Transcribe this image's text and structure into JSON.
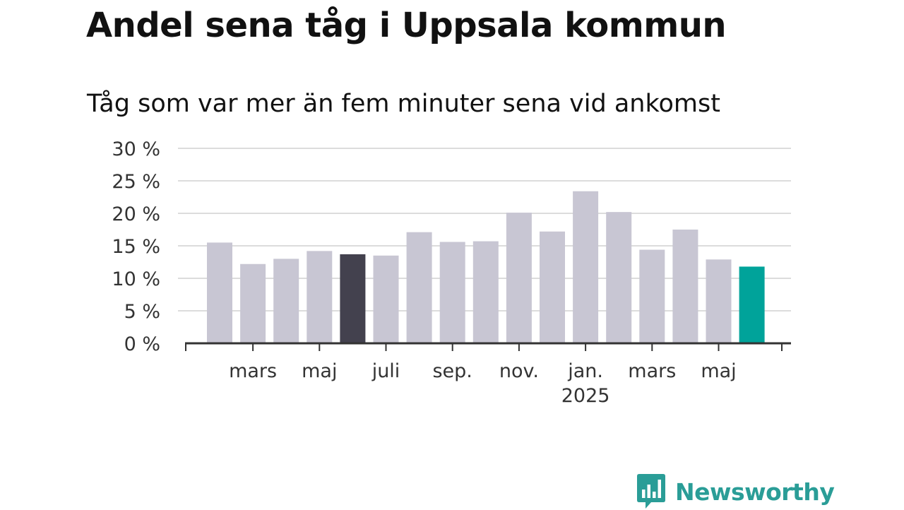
{
  "title": "Andel sena tåg i Uppsala kommun",
  "subtitle": "Tåg som var mer än fem minuter sena vid ankomst",
  "logo": {
    "name": "Newsworthy",
    "icon": "bar-chart-speech-bubble-icon",
    "color": "#2a9d97"
  },
  "colors": {
    "bar_default": "#c8c6d3",
    "bar_highlight_dark": "#43414e",
    "bar_highlight_latest": "#00a39a",
    "grid": "#dcdcdc",
    "axis": "#333333"
  },
  "chart_data": {
    "type": "bar",
    "title": "Tåg som var mer än fem minuter sena vid ankomst",
    "xlabel": "",
    "ylabel": "",
    "ylim": [
      0,
      30
    ],
    "yticks": [
      0,
      5,
      10,
      15,
      20,
      25,
      30
    ],
    "ytick_labels": [
      "0 %",
      "5 %",
      "10 %",
      "15 %",
      "20 %",
      "25 %",
      "30 %"
    ],
    "grid": true,
    "categories": [
      "2024-02",
      "2024-03",
      "2024-04",
      "2024-05",
      "2024-06",
      "2024-07",
      "2024-08",
      "2024-09",
      "2024-10",
      "2024-11",
      "2024-12",
      "2025-01",
      "2025-02",
      "2025-03",
      "2025-04",
      "2025-05",
      "2025-06"
    ],
    "values": [
      15.5,
      12.2,
      13.0,
      14.2,
      13.7,
      13.5,
      17.1,
      15.6,
      15.7,
      20.1,
      17.2,
      23.4,
      20.2,
      14.4,
      17.5,
      12.9,
      11.8
    ],
    "highlight": {
      "2024-06": "dark",
      "2025-06": "latest"
    },
    "xtick_labels": [
      {
        "month": "2024-03",
        "label": "mars"
      },
      {
        "month": "2024-05",
        "label": "maj"
      },
      {
        "month": "2024-07",
        "label": "juli"
      },
      {
        "month": "2024-09",
        "label": "sep."
      },
      {
        "month": "2024-11",
        "label": "nov."
      },
      {
        "month": "2025-01",
        "label": "jan.",
        "sublabel": "2025"
      },
      {
        "month": "2025-03",
        "label": "mars"
      },
      {
        "month": "2025-05",
        "label": "maj"
      }
    ]
  }
}
